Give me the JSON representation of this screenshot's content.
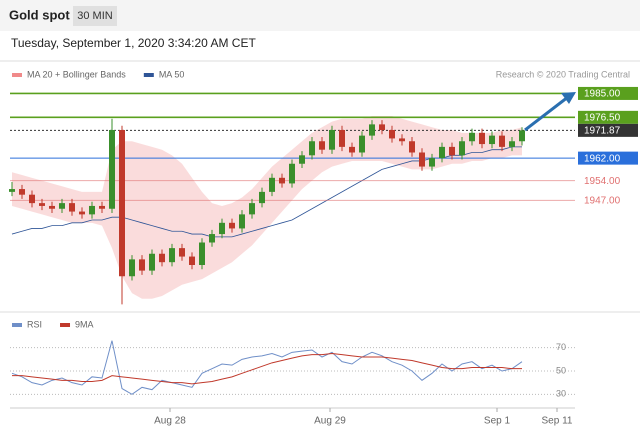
{
  "chart_data": [
    {
      "type": "candlestick",
      "title": "Gold spot",
      "subtitle": "30 MIN",
      "timestamp": "Tuesday, September 1, 2020 3:34:20 AM CET",
      "credit": "Research © 2020 Trading Central",
      "xlim": [
        0,
        56
      ],
      "ylim": [
        1908,
        1988
      ],
      "up_color": "#3a8f2c",
      "down_color": "#c0392b",
      "open": [
        1950,
        1951,
        1949,
        1946,
        1945,
        1944,
        1946,
        1943,
        1942,
        1945,
        1944,
        1972,
        1920,
        1926,
        1922,
        1928,
        1925,
        1930,
        1927,
        1924,
        1932,
        1935,
        1939,
        1937,
        1942,
        1946,
        1950,
        1955,
        1953,
        1960,
        1963,
        1968,
        1965,
        1972,
        1966,
        1964,
        1970,
        1974,
        1972,
        1969,
        1968,
        1964,
        1959,
        1962,
        1966,
        1963,
        1968,
        1971,
        1967,
        1970,
        1966,
        1968
      ],
      "high": [
        1953.5,
        1952.5,
        1950.5,
        1947.5,
        1946.5,
        1947.5,
        1947.5,
        1944.5,
        1946.5,
        1946.5,
        1976,
        1973.5,
        1927.5,
        1927.5,
        1929.5,
        1929.5,
        1931.5,
        1931.5,
        1928.5,
        1933.5,
        1936.5,
        1940.5,
        1940.5,
        1943.5,
        1947.5,
        1951.5,
        1956.5,
        1956.5,
        1961.5,
        1964.5,
        1969.5,
        1969.5,
        1973.5,
        1973.5,
        1967.5,
        1971.5,
        1975.5,
        1975.5,
        1973.5,
        1970.5,
        1969.5,
        1965.5,
        1963.5,
        1967.5,
        1967.5,
        1969.5,
        1972.5,
        1972.5,
        1971.5,
        1971.5,
        1969.5,
        1973
      ],
      "low": [
        1948.5,
        1947.5,
        1944.5,
        1943.5,
        1942.5,
        1942.5,
        1941.5,
        1940.5,
        1940.5,
        1942.5,
        1942.5,
        1910,
        1918.5,
        1920.5,
        1920.5,
        1923.5,
        1923.5,
        1925.5,
        1922.5,
        1922.5,
        1930.5,
        1933.5,
        1935.5,
        1935.5,
        1940.5,
        1944.5,
        1948.5,
        1951.5,
        1951.5,
        1958.5,
        1961.5,
        1963.5,
        1963.5,
        1964.5,
        1962.5,
        1962.5,
        1968.5,
        1970.5,
        1967.5,
        1966.5,
        1962.5,
        1957.5,
        1957.5,
        1960.5,
        1961.5,
        1961.5,
        1966.5,
        1965.5,
        1965.5,
        1964.5,
        1964.5,
        1966.5
      ],
      "close": [
        1951,
        1949,
        1946,
        1945,
        1944,
        1946,
        1943,
        1942,
        1945,
        1944,
        1972,
        1920,
        1926,
        1922,
        1928,
        1925,
        1930,
        1927,
        1924,
        1932,
        1935,
        1939,
        1937,
        1942,
        1946,
        1950,
        1955,
        1953,
        1960,
        1963,
        1968,
        1965,
        1972,
        1966,
        1964,
        1970,
        1974,
        1972,
        1969,
        1968,
        1964,
        1959,
        1962,
        1966,
        1963,
        1968,
        1971,
        1967,
        1970,
        1966,
        1968,
        1971.87
      ],
      "series": [
        {
          "name": "MA 20 + Bollinger Bands",
          "color": "#f08a8a",
          "upper": [
            1957,
            1956,
            1955,
            1954,
            1953,
            1952,
            1951,
            1950,
            1950,
            1950,
            1965,
            1968,
            1968,
            1967,
            1966,
            1965,
            1963,
            1960,
            1955,
            1950,
            1946,
            1945,
            1946,
            1948,
            1951,
            1955,
            1959,
            1962,
            1965,
            1968,
            1971,
            1973,
            1975,
            1976,
            1976,
            1976,
            1977,
            1977,
            1977,
            1976,
            1975,
            1974,
            1973,
            1972,
            1972,
            1971,
            1971,
            1971,
            1971,
            1972,
            1972,
            1973
          ],
          "lower": [
            1945,
            1944,
            1943,
            1942,
            1941,
            1940,
            1939,
            1939,
            1939,
            1938,
            1930,
            1920,
            1914,
            1912,
            1912,
            1913,
            1915,
            1917,
            1918,
            1919,
            1921,
            1923,
            1925,
            1928,
            1931,
            1935,
            1939,
            1943,
            1947,
            1951,
            1954,
            1957,
            1959,
            1960,
            1961,
            1961,
            1961,
            1961,
            1960,
            1959,
            1958,
            1958,
            1958,
            1959,
            1960,
            1960,
            1961,
            1961,
            1962,
            1962,
            1963,
            1963
          ]
        },
        {
          "name": "MA 50",
          "color": "#2f5597",
          "values": [
            1935,
            1936,
            1937,
            1937,
            1938,
            1938,
            1939,
            1939,
            1940,
            1940,
            1941,
            1941,
            1940,
            1939,
            1938,
            1937,
            1936,
            1936,
            1935,
            1935,
            1934,
            1934,
            1934,
            1935,
            1936,
            1937,
            1938,
            1939,
            1940,
            1942,
            1944,
            1946,
            1948,
            1950,
            1952,
            1954,
            1956,
            1958,
            1959,
            1960,
            1961,
            1961,
            1962,
            1962,
            1963,
            1963,
            1964,
            1964,
            1965,
            1965,
            1966,
            1966
          ]
        }
      ],
      "levels": [
        {
          "value": 1985,
          "label": "1985.00",
          "color": "#5aa01e",
          "boxed": true
        },
        {
          "value": 1976.5,
          "label": "1976.50",
          "color": "#5aa01e",
          "boxed": true
        },
        {
          "value": 1971.87,
          "label": "1971.87",
          "color": "#333333",
          "boxed": true
        },
        {
          "value": 1962,
          "label": "1962.00",
          "color": "#2a6fdb",
          "boxed": true
        },
        {
          "value": 1954,
          "label": "1954.00",
          "color": "#e07070",
          "boxed": false
        },
        {
          "value": 1947,
          "label": "1947.00",
          "color": "#e07070",
          "boxed": false
        }
      ]
    },
    {
      "type": "line",
      "xlim": [
        0,
        56
      ],
      "ylim": [
        20,
        80
      ],
      "yticks": [
        30,
        50,
        70
      ],
      "grid": true,
      "xticks": [
        {
          "value": 15.8,
          "label": "Aug 28"
        },
        {
          "value": 31.8,
          "label": "Aug 29"
        },
        {
          "value": 48.5,
          "label": "Sep 1"
        },
        {
          "value": 54.5,
          "label": "Sep 11"
        }
      ],
      "series": [
        {
          "name": "RSI",
          "color": "#6f8fc8",
          "values": [
            48,
            45,
            40,
            38,
            42,
            44,
            40,
            38,
            45,
            44,
            76,
            35,
            30,
            36,
            34,
            42,
            40,
            38,
            36,
            48,
            52,
            56,
            55,
            60,
            62,
            63,
            65,
            62,
            66,
            67,
            68,
            62,
            66,
            58,
            56,
            62,
            66,
            63,
            58,
            55,
            50,
            42,
            48,
            56,
            50,
            56,
            58,
            52,
            55,
            50,
            52,
            58
          ]
        },
        {
          "name": "9MA",
          "color": "#c0392b",
          "values": [
            46,
            46,
            45,
            44,
            43,
            42,
            42,
            41,
            41,
            42,
            46,
            45,
            44,
            43,
            42,
            41,
            40,
            40,
            39,
            40,
            41,
            43,
            45,
            48,
            51,
            54,
            57,
            59,
            61,
            63,
            64,
            64,
            65,
            64,
            63,
            62,
            62,
            62,
            61,
            60,
            59,
            57,
            55,
            53,
            52,
            52,
            53,
            53,
            53,
            53,
            52,
            52
          ]
        }
      ]
    }
  ]
}
